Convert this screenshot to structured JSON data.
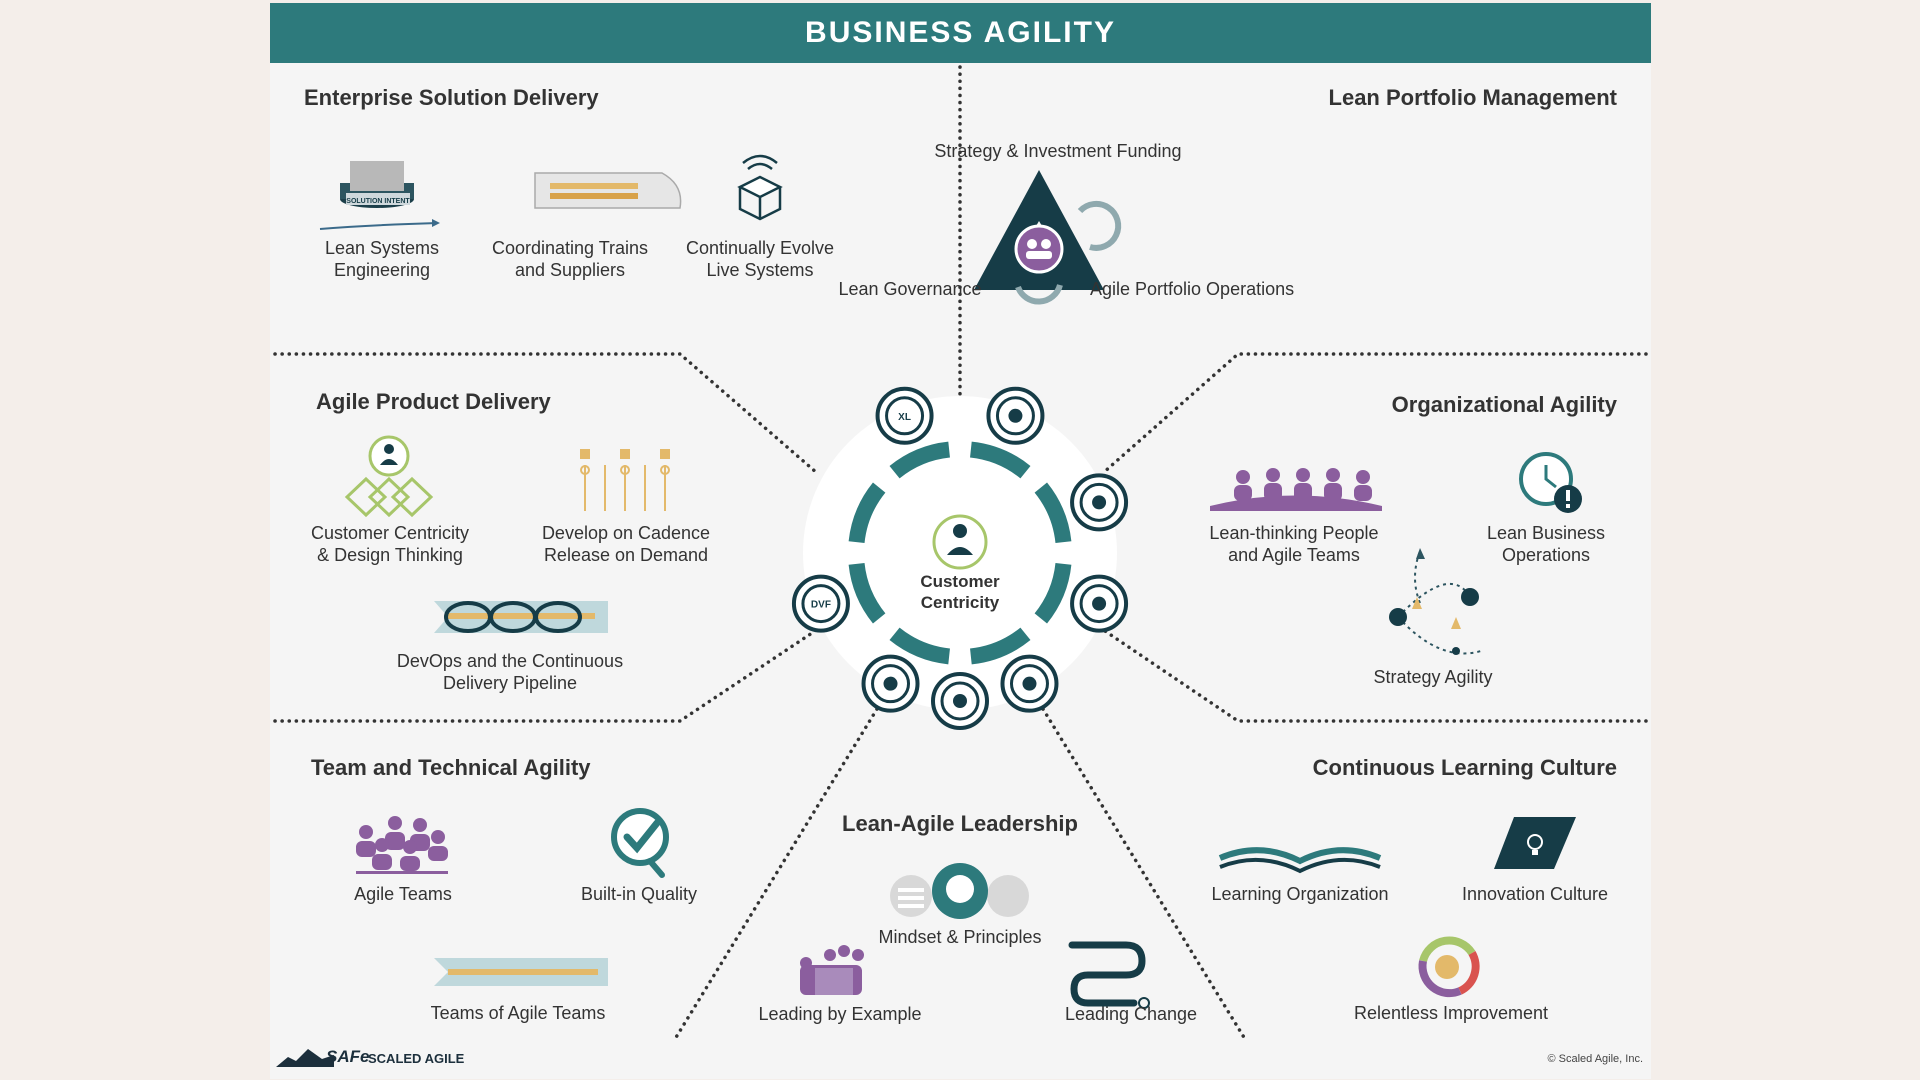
{
  "title": "BUSINESS AGILITY",
  "center": {
    "label": "Customer\nCentricity"
  },
  "sections": {
    "esd": {
      "title": "Enterprise Solution Delivery",
      "items": [
        "Lean Systems\nEngineering",
        "Coordinating Trains\nand Suppliers",
        "Continually Evolve\nLive Systems"
      ],
      "badge_text": "SOLUTION INTENT"
    },
    "lpm": {
      "title": "Lean Portfolio Management",
      "items": [
        "Strategy & Investment Funding",
        "Lean Governance",
        "Agile Portfolio Operations"
      ]
    },
    "apd": {
      "title": "Agile Product Delivery",
      "items": [
        "Customer Centricity\n& Design Thinking",
        "Develop on Cadence\nRelease on Demand",
        "DevOps and the Continuous\nDelivery Pipeline"
      ]
    },
    "oa": {
      "title": "Organizational Agility",
      "items": [
        "Lean-thinking People\nand Agile Teams",
        "Lean Business\nOperations",
        "Strategy Agility"
      ]
    },
    "tta": {
      "title": "Team and Technical Agility",
      "items": [
        "Agile Teams",
        "Built-in Quality",
        "Teams of Agile Teams"
      ]
    },
    "lal": {
      "title": "Lean-Agile Leadership",
      "items": [
        "Mindset & Principles",
        "Leading by Example",
        "Leading Change"
      ]
    },
    "clc": {
      "title": "Continuous Learning Culture",
      "items": [
        "Learning Organization",
        "Innovation Culture",
        "Relentless Improvement"
      ]
    }
  },
  "ring_icons": [
    "xl-cube-icon",
    "portfolio-team-icon",
    "value-stream-icon",
    "teams-network-icon",
    "leadership-badge-icon",
    "leader-group-icon",
    "gear-team-icon",
    "dvf-cube-icon"
  ],
  "ring_icon_text": {
    "xl": "XL",
    "dvf": "DVF"
  },
  "footer": {
    "logo": "SAFe",
    "provider": "SCALED AGILE",
    "copyright": "© Scaled Agile, Inc."
  },
  "colors": {
    "banner": "#2d7a7c",
    "teal_dark": "#163c47",
    "teal": "#2d7a7c",
    "purple": "#8b5e9e",
    "gold": "#e3b96a",
    "green": "#a7c66a"
  }
}
